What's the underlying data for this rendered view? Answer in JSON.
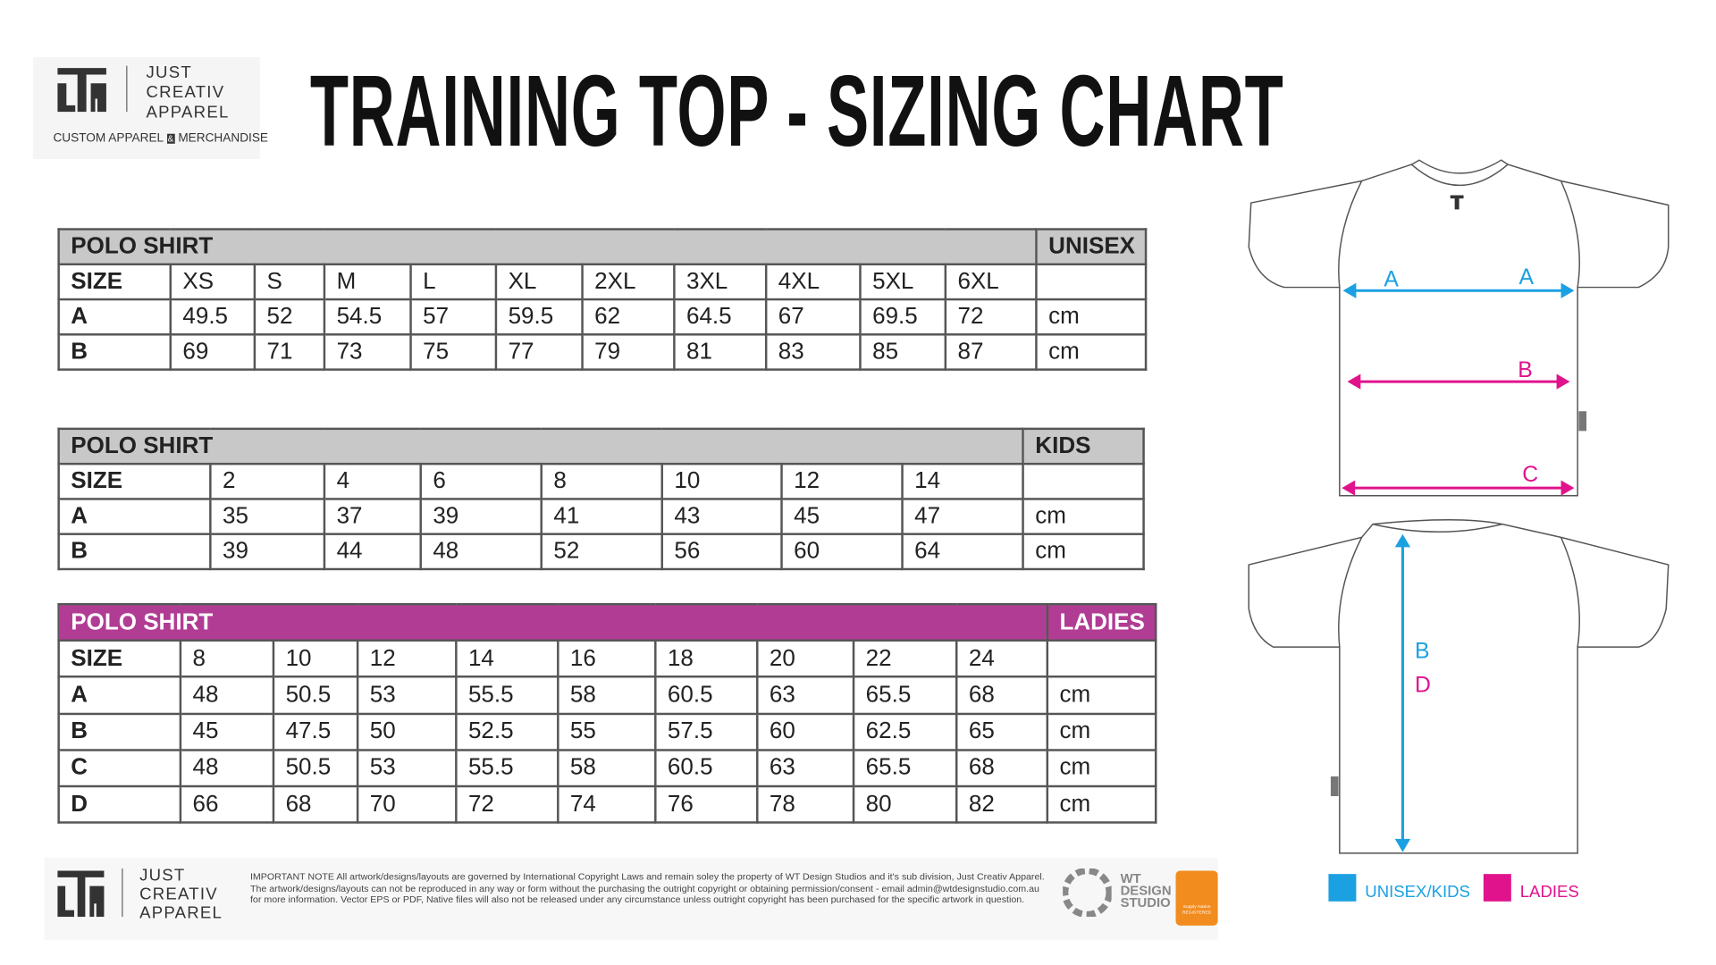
{
  "logo": {
    "line1": "JUST",
    "line2": "CREATIV",
    "line3": "APPAREL",
    "tagline_left": "CUSTOM APPAREL",
    "tagline_amp": "&",
    "tagline_right": "MERCHANDISE"
  },
  "title": "TRAINING TOP - SIZING CHART",
  "tables": [
    {
      "header": "POLO SHIRT",
      "group": "UNISEX",
      "style": "gray",
      "rows": [
        [
          "SIZE",
          "XS",
          "S",
          "M",
          "L",
          "XL",
          "2XL",
          "3XL",
          "4XL",
          "5XL",
          "6XL"
        ],
        [
          "A",
          "49.5",
          "52",
          "54.5",
          "57",
          "59.5",
          "62",
          "64.5",
          "67",
          "69.5",
          "72",
          "cm"
        ],
        [
          "B",
          "69",
          "71",
          "73",
          "75",
          "77",
          "79",
          "81",
          "83",
          "85",
          "87",
          "cm"
        ]
      ]
    },
    {
      "header": "POLO SHIRT",
      "group": "KIDS",
      "style": "gray",
      "rows": [
        [
          "SIZE",
          "2",
          "4",
          "6",
          "8",
          "10",
          "12",
          "14"
        ],
        [
          "A",
          "35",
          "37",
          "39",
          "41",
          "43",
          "45",
          "47",
          "cm"
        ],
        [
          "B",
          "39",
          "44",
          "48",
          "52",
          "56",
          "60",
          "64",
          "cm"
        ]
      ]
    },
    {
      "header": "POLO SHIRT",
      "group": "LADIES",
      "style": "magenta",
      "rows": [
        [
          "SIZE",
          "8",
          "10",
          "12",
          "14",
          "16",
          "18",
          "20",
          "22",
          "24"
        ],
        [
          "A",
          "48",
          "50.5",
          "53",
          "55.5",
          "58",
          "60.5",
          "63",
          "65.5",
          "68",
          "cm"
        ],
        [
          "B",
          "45",
          "47.5",
          "50",
          "52.5",
          "55",
          "57.5",
          "60",
          "62.5",
          "65",
          "cm"
        ],
        [
          "C",
          "48",
          "50.5",
          "53",
          "55.5",
          "58",
          "60.5",
          "63",
          "65.5",
          "68",
          "cm"
        ],
        [
          "D",
          "66",
          "68",
          "70",
          "72",
          "74",
          "76",
          "78",
          "80",
          "82",
          "cm"
        ]
      ]
    }
  ],
  "diagram": {
    "front": {
      "a_left": "A",
      "a_right": "A",
      "b": "B",
      "c": "C"
    },
    "back": {
      "b": "B",
      "d": "D"
    }
  },
  "legend": [
    {
      "label": "UNISEX/KIDS",
      "color": "#1ba1e2"
    },
    {
      "label": "LADIES",
      "color": "#e0138c"
    }
  ],
  "footer": {
    "logo_line1": "JUST",
    "logo_line2": "CREATIV",
    "logo_line3": "APPAREL",
    "note": "IMPORTANT NOTE All artwork/designs/layouts are governed by International Copyright Laws and remain soley the property of WT Design Studios and it's sub division, Just Creativ Apparel. The artwork/designs/layouts can not be reproduced in any way or form without the purchasing the outright copyright or obtaining permission/consent - email admin@wtdesignstudio.com.au for more information. Vector EPS or PDF, Native files will also not be released under any circumstance unless outright copyright has been purchased for the specific artwork in question.",
    "studio_line1": "WT",
    "studio_line2": "DESIGN",
    "studio_line3": "STUDIO",
    "badge_top": "Supply Nation",
    "badge_bottom": "REGISTERED"
  }
}
